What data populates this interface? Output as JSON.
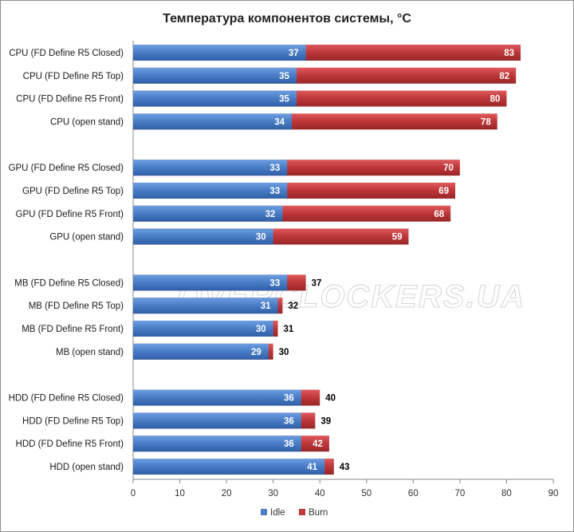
{
  "chart_data": {
    "type": "bar",
    "orientation": "horizontal",
    "stacked": true,
    "title": "Температура компонентов системы, °С",
    "watermark": "OVERCLOCKERS.UA",
    "xlim": [
      0,
      90
    ],
    "xticks": [
      0,
      10,
      20,
      30,
      40,
      50,
      60,
      70,
      80,
      90
    ],
    "groups": [
      {
        "name": "CPU",
        "items": [
          {
            "label": "CPU (FD Define R5 Closed)",
            "idle": 37,
            "burn": 83
          },
          {
            "label": "CPU (FD Define R5 Top)",
            "idle": 35,
            "burn": 82
          },
          {
            "label": "CPU (FD Define R5 Front)",
            "idle": 35,
            "burn": 80
          },
          {
            "label": "CPU (open stand)",
            "idle": 34,
            "burn": 78
          }
        ]
      },
      {
        "name": "GPU",
        "items": [
          {
            "label": "GPU (FD Define R5 Closed)",
            "idle": 33,
            "burn": 70
          },
          {
            "label": "GPU (FD Define R5 Top)",
            "idle": 33,
            "burn": 69
          },
          {
            "label": "GPU (FD Define R5 Front)",
            "idle": 32,
            "burn": 68
          },
          {
            "label": "GPU (open stand)",
            "idle": 30,
            "burn": 59
          }
        ]
      },
      {
        "name": "MB",
        "items": [
          {
            "label": "MB (FD Define R5 Closed)",
            "idle": 33,
            "burn": 37
          },
          {
            "label": "MB (FD Define R5 Top)",
            "idle": 31,
            "burn": 32
          },
          {
            "label": "MB (FD Define R5 Front)",
            "idle": 30,
            "burn": 31
          },
          {
            "label": "MB (open stand)",
            "idle": 29,
            "burn": 30
          }
        ]
      },
      {
        "name": "HDD",
        "items": [
          {
            "label": "HDD (FD Define R5 Closed)",
            "idle": 36,
            "burn": 40
          },
          {
            "label": "HDD (FD Define R5 Top)",
            "idle": 36,
            "burn": 39
          },
          {
            "label": "HDD (FD Define R5 Front)",
            "idle": 36,
            "burn": 42
          },
          {
            "label": "HDD (open stand)",
            "idle": 41,
            "burn": 43
          }
        ]
      }
    ],
    "series": [
      {
        "key": "idle",
        "name": "Idle",
        "color": "#4a7fc8"
      },
      {
        "key": "burn",
        "name": "Burn",
        "color": "#c0393b"
      }
    ],
    "legend_position": "bottom"
  }
}
